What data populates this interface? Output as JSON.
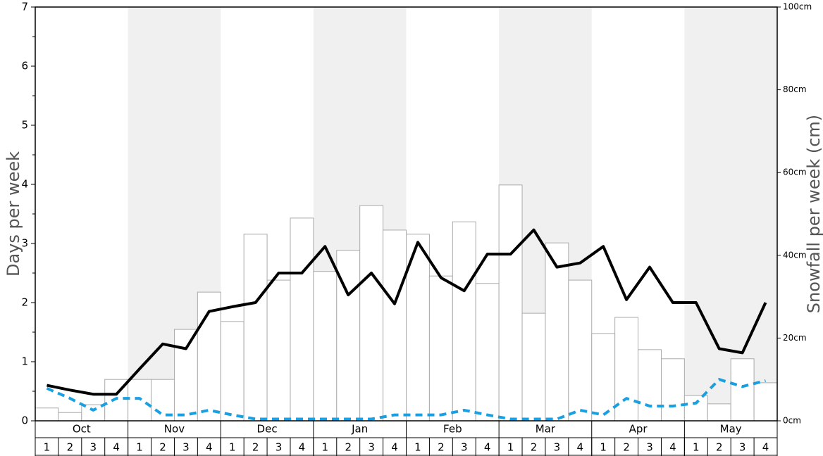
{
  "chart_data": {
    "type": "bar-line",
    "ylabel": "Days per week",
    "y2label": "Snowfall per week (cm)",
    "months": [
      "Oct",
      "Nov",
      "Dec",
      "Jan",
      "Feb",
      "Mar",
      "Apr",
      "May"
    ],
    "categories": [
      "1",
      "2",
      "3",
      "4",
      "1",
      "2",
      "3",
      "4",
      "1",
      "2",
      "3",
      "4",
      "1",
      "2",
      "3",
      "4",
      "1",
      "2",
      "3",
      "4",
      "1",
      "2",
      "3",
      "4",
      "1",
      "2",
      "3",
      "4",
      "1",
      "2",
      "3",
      "4"
    ],
    "ylim": [
      0,
      7
    ],
    "yticks": [
      0,
      1,
      2,
      3,
      4,
      5,
      6,
      7
    ],
    "y2lim": [
      0,
      100
    ],
    "y2ticks": [
      {
        "value": 0,
        "label": "0cm"
      },
      {
        "value": 20,
        "label": "20cm"
      },
      {
        "value": 40,
        "label": "40cm"
      },
      {
        "value": 60,
        "label": "60cm"
      },
      {
        "value": 80,
        "label": "80cm"
      },
      {
        "value": 100,
        "label": "100cm"
      }
    ],
    "series": [
      {
        "type": "bar",
        "axis": "y2",
        "color": "#aaaaaa",
        "values": [
          3.1,
          2.0,
          3.9,
          10.0,
          10.0,
          10.0,
          22.1,
          31.1,
          24.0,
          45.1,
          34.0,
          49.0,
          36.1,
          41.2,
          52.0,
          46.1,
          45.1,
          35.0,
          48.1,
          33.2,
          57.0,
          26.0,
          43.0,
          34.0,
          21.1,
          25.0,
          17.2,
          15.0,
          6.1,
          4.1,
          15.0,
          9.2
        ]
      },
      {
        "type": "line",
        "color": "#000000",
        "values": [
          0.6,
          0.52,
          0.45,
          0.45,
          0.88,
          1.3,
          1.22,
          1.85,
          1.93,
          2.0,
          2.5,
          2.5,
          2.95,
          2.13,
          2.5,
          1.98,
          3.02,
          2.42,
          2.2,
          2.82,
          2.82,
          3.23,
          2.6,
          2.67,
          2.95,
          2.05,
          2.6,
          2.0,
          2.0,
          1.22,
          1.15,
          2.0
        ]
      },
      {
        "type": "dashed-line",
        "color": "#1a9fe0",
        "values": [
          0.55,
          0.38,
          0.18,
          0.38,
          0.38,
          0.1,
          0.1,
          0.18,
          0.1,
          0.03,
          0.03,
          0.03,
          0.03,
          0.03,
          0.03,
          0.1,
          0.1,
          0.1,
          0.18,
          0.1,
          0.03,
          0.03,
          0.03,
          0.18,
          0.1,
          0.38,
          0.25,
          0.25,
          0.3,
          0.7,
          0.58,
          0.68
        ]
      }
    ]
  }
}
